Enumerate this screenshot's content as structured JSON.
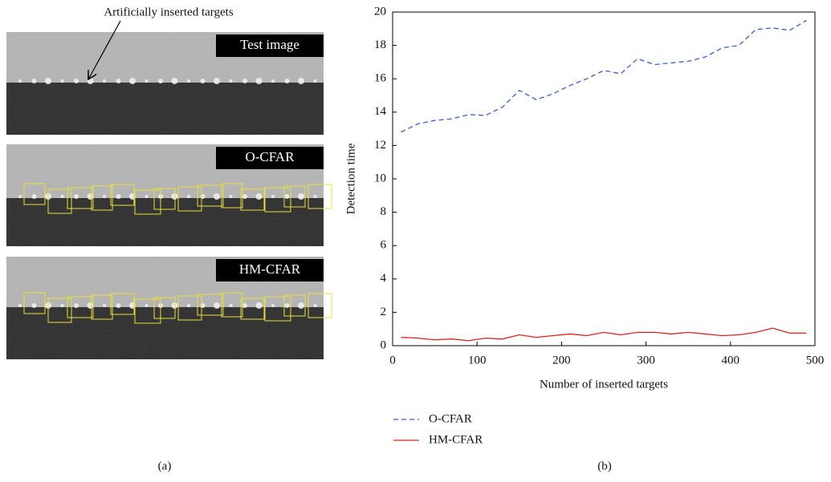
{
  "panel_a": {
    "annotation": "Artificially inserted targets",
    "labels": [
      "Test image",
      "O-CFAR",
      "HM-CFAR"
    ]
  },
  "captions": [
    "(a)",
    "(b)"
  ],
  "chart_data": {
    "type": "line",
    "x_label": "Number of inserted targets",
    "y_label": "Detection time",
    "x": [
      10,
      30,
      50,
      70,
      90,
      110,
      130,
      150,
      170,
      190,
      210,
      230,
      250,
      270,
      290,
      310,
      330,
      350,
      370,
      390,
      410,
      430,
      450,
      470,
      490
    ],
    "series": [
      {
        "name": "O-CFAR",
        "color": "#3a5fbf",
        "dashed": true,
        "values": [
          12.8,
          13.3,
          13.5,
          13.6,
          13.85,
          13.8,
          14.3,
          15.3,
          14.75,
          15.1,
          15.6,
          16.0,
          16.5,
          16.3,
          17.2,
          16.85,
          16.95,
          17.05,
          17.3,
          17.85,
          18.0,
          18.95,
          19.05,
          18.9,
          19.5
        ]
      },
      {
        "name": "HM-CFAR",
        "color": "#e02020",
        "dashed": false,
        "values": [
          0.5,
          0.45,
          0.35,
          0.4,
          0.3,
          0.45,
          0.4,
          0.65,
          0.5,
          0.6,
          0.7,
          0.6,
          0.8,
          0.65,
          0.8,
          0.8,
          0.7,
          0.8,
          0.7,
          0.6,
          0.65,
          0.8,
          1.05,
          0.75,
          0.75
        ]
      }
    ],
    "xlim": [
      0,
      500
    ],
    "xticks": [
      0,
      100,
      200,
      300,
      400,
      500
    ],
    "ylim": [
      0,
      20
    ],
    "yticks": [
      0,
      2,
      4,
      6,
      8,
      10,
      12,
      14,
      16,
      18,
      20
    ],
    "legend": "bottom-left"
  }
}
